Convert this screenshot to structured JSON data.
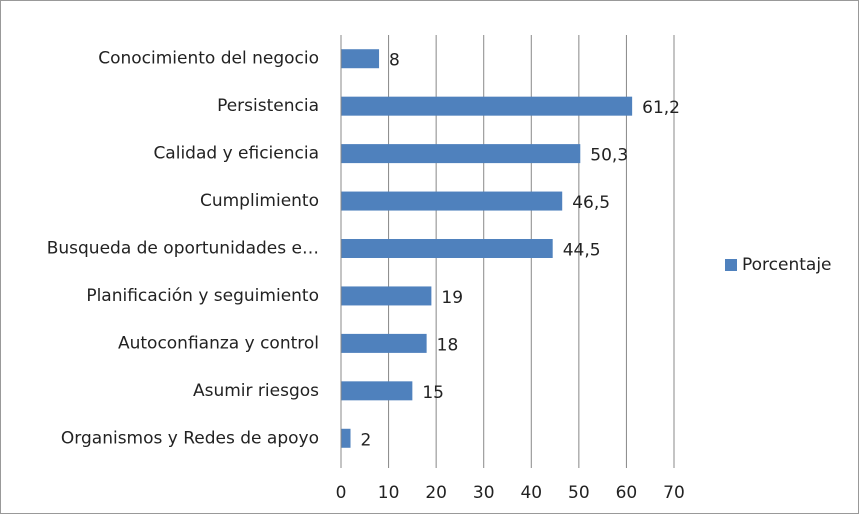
{
  "chart_data": {
    "type": "bar",
    "orientation": "horizontal",
    "categories": [
      "Conocimiento del negocio",
      "Persistencia",
      "Calidad y eficiencia",
      "Cumplimiento",
      "Busqueda de oportunidades e…",
      "Planificación y seguimiento",
      "Autoconfianza y control",
      "Asumir riesgos",
      "Organismos y Redes de apoyo"
    ],
    "series": [
      {
        "name": "Porcentaje",
        "color": "#4f81bd",
        "values": [
          8,
          61.2,
          50.3,
          46.5,
          44.5,
          19,
          18,
          15,
          2
        ],
        "value_labels": [
          "8",
          "61,2",
          "50,3",
          "46,5",
          "44,5",
          "19",
          "18",
          "15",
          "2"
        ]
      }
    ],
    "xlim": [
      0,
      70
    ],
    "xticks": [
      0,
      10,
      20,
      30,
      40,
      50,
      60,
      70
    ],
    "grid": true,
    "legend": "right"
  }
}
